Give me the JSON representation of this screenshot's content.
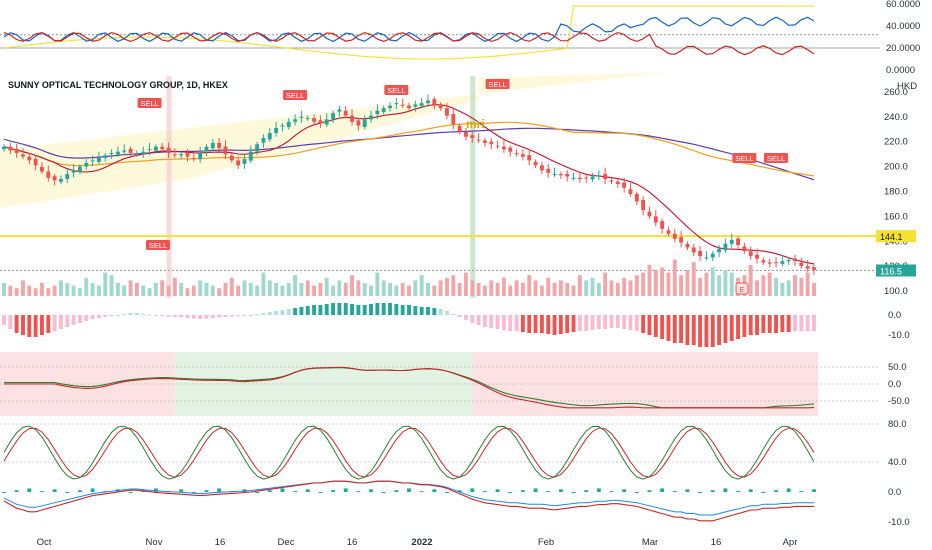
{
  "chart_data": {
    "type": "candlestick",
    "title": "SUNNY OPTICAL TECHNOLOGY GROUP, 1D, HKEX",
    "currency": "HKD",
    "x_tick_labels": [
      "Oct",
      "Nov",
      "16",
      "Dec",
      "16",
      "2022",
      "Feb",
      "Mar",
      "16",
      "Apr"
    ],
    "price_axis": {
      "ticks": [
        "260.0",
        "240.0",
        "220.0",
        "200.0",
        "180.0",
        "160.0",
        "140.0",
        "120.0",
        "100.0"
      ],
      "range": [
        96,
        268
      ]
    },
    "last_price": "116.5",
    "level_line": {
      "value": "144.1",
      "color": "#f5e12f"
    },
    "annotation_text": "mri",
    "signals": [
      "SELL",
      "SELL",
      "SELL",
      "SELL",
      "SELL",
      "SELL",
      "SELL"
    ],
    "badge": "E",
    "close_series": [
      216,
      213,
      211,
      208,
      205,
      201,
      196,
      191,
      189,
      190,
      194,
      197,
      200,
      203,
      205,
      207,
      209,
      211,
      212,
      213,
      211,
      210,
      212,
      214,
      216,
      214,
      211,
      209,
      210,
      208,
      206,
      211,
      216,
      219,
      215,
      210,
      205,
      201,
      206,
      212,
      218,
      223,
      227,
      231,
      233,
      236,
      238,
      240,
      239,
      236,
      235,
      238,
      243,
      246,
      241,
      236,
      233,
      238,
      241,
      245,
      247,
      249,
      251,
      249,
      247,
      250,
      251,
      253,
      250,
      247,
      241,
      234,
      228,
      224,
      223,
      221,
      219,
      218,
      216,
      214,
      212,
      210,
      208,
      205,
      201,
      197,
      195,
      194,
      193,
      192,
      191,
      190,
      191,
      192,
      193,
      190,
      188,
      186,
      183,
      178,
      172,
      165,
      160,
      155,
      150,
      146,
      142,
      139,
      135,
      131,
      128,
      127,
      130,
      134,
      138,
      141,
      137,
      132,
      128,
      126,
      123,
      122,
      123,
      124,
      125,
      124,
      120,
      118,
      117
    ],
    "volume_series": [
      5,
      4,
      3,
      6,
      4,
      3,
      5,
      3,
      4,
      6,
      5,
      4,
      3,
      7,
      5,
      4,
      9,
      8,
      5,
      4,
      6,
      5,
      4,
      3,
      5,
      6,
      4,
      7,
      5,
      3,
      4,
      6,
      5,
      4,
      3,
      5,
      7,
      4,
      6,
      5,
      4,
      9,
      6,
      5,
      4,
      5,
      8,
      5,
      6,
      4,
      5,
      7,
      4,
      6,
      5,
      8,
      6,
      5,
      4,
      9,
      6,
      5,
      4,
      5,
      4,
      6,
      8,
      5,
      4,
      6,
      7,
      8,
      5,
      9,
      6,
      5,
      4,
      6,
      5,
      7,
      4,
      6,
      5,
      8,
      6,
      4,
      7,
      5,
      6,
      5,
      4,
      8,
      6,
      7,
      5,
      9,
      6,
      5,
      7,
      6,
      8,
      9,
      12,
      10,
      11,
      9,
      14,
      8,
      10,
      13,
      7,
      9,
      11,
      8,
      10,
      9,
      7,
      8,
      12,
      6,
      8,
      9,
      7,
      5,
      6,
      8,
      7,
      9,
      5
    ],
    "macd_histogram": [
      -5,
      -7,
      -9,
      -10,
      -11,
      -11,
      -10,
      -9,
      -8,
      -7,
      -6,
      -5,
      -4,
      -3,
      -2,
      -1.5,
      -1,
      -0.5,
      0,
      0.5,
      1,
      1,
      0.6,
      0.2,
      -0.2,
      -0.5,
      -0.8,
      -1,
      -1.2,
      -1.5,
      -1.8,
      -2,
      -1.8,
      -1.5,
      -1.2,
      -1,
      -0.8,
      -0.6,
      -0.3,
      0,
      0.5,
      1,
      1.5,
      2,
      2.5,
      3,
      3.5,
      4,
      4.5,
      5,
      5,
      5.5,
      6,
      6,
      6,
      5.5,
      5,
      5,
      5.5,
      6,
      6,
      6,
      5.5,
      5,
      5,
      4.5,
      4,
      4,
      3.5,
      3,
      2,
      0.5,
      -1,
      -2.5,
      -4,
      -5,
      -6,
      -6.5,
      -7,
      -7.5,
      -8,
      -8,
      -8.5,
      -9,
      -9,
      -9,
      -9.5,
      -10,
      -9.5,
      -9,
      -8.5,
      -8,
      -8,
      -7.5,
      -7,
      -7,
      -6.5,
      -6.5,
      -7,
      -7.5,
      -8,
      -9,
      -10,
      -11,
      -12,
      -13,
      -14,
      -14,
      -15,
      -15,
      -16,
      -16,
      -16,
      -15,
      -14,
      -13,
      -12,
      -11,
      -10,
      -10,
      -9,
      -9,
      -9,
      -8.5,
      -8.5,
      -8,
      -8,
      -8,
      -8
    ],
    "macd_axis": [
      "0.0",
      "-10.0"
    ],
    "oscillator_axis": [
      "50.0",
      "0.0",
      "-50.0"
    ],
    "stochastic_axis": [
      "80.0",
      "40.0"
    ],
    "bottom_axis": [
      "0.0",
      "-10.0"
    ],
    "top_axis": [
      "60.0000",
      "40.0000",
      "20.0000",
      "0.0000"
    ]
  }
}
